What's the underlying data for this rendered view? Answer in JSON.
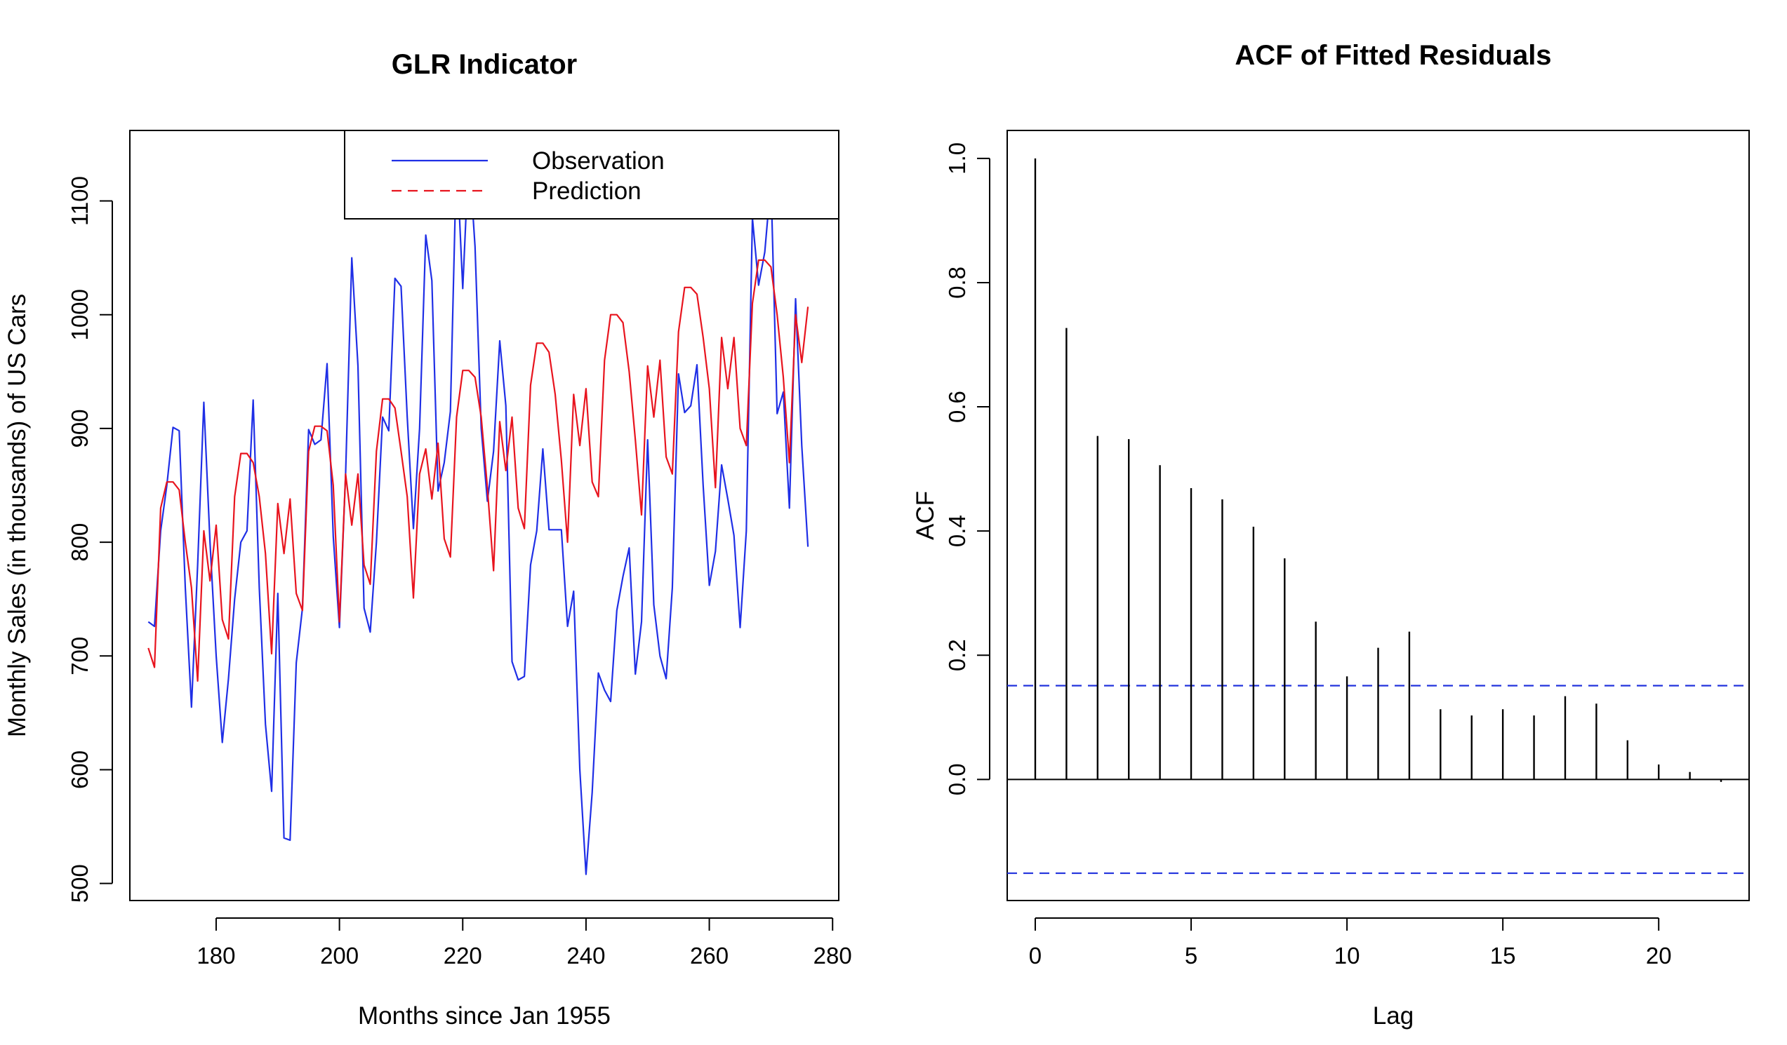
{
  "chart_data": [
    {
      "type": "line",
      "title": "GLR Indicator",
      "xlabel": "Months since Jan 1955",
      "ylabel": "Monthly Sales (in thousands) of US Cars",
      "xlim": [
        166,
        281
      ],
      "ylim": [
        485,
        1162
      ],
      "xticks": [
        180,
        200,
        220,
        240,
        260,
        280
      ],
      "yticks": [
        500,
        600,
        700,
        800,
        900,
        1000,
        1100
      ],
      "legend": "top-right",
      "x": [
        169,
        170,
        171,
        172,
        173,
        174,
        175,
        176,
        177,
        178,
        179,
        180,
        181,
        182,
        183,
        184,
        185,
        186,
        187,
        188,
        189,
        190,
        191,
        192,
        193,
        194,
        195,
        196,
        197,
        198,
        199,
        200,
        201,
        202,
        203,
        204,
        205,
        206,
        207,
        208,
        209,
        210,
        211,
        212,
        213,
        214,
        215,
        216,
        217,
        218,
        219,
        220,
        221,
        222,
        223,
        224,
        225,
        226,
        227,
        228,
        229,
        230,
        231,
        232,
        233,
        234,
        235,
        236,
        237,
        238,
        239,
        240,
        241,
        242,
        243,
        244,
        245,
        246,
        247,
        248,
        249,
        250,
        251,
        252,
        253,
        254,
        255,
        256,
        257,
        258,
        259,
        260,
        261,
        262,
        263,
        264,
        265,
        266,
        267,
        268,
        269,
        270,
        271,
        272,
        273,
        274,
        275,
        276
      ],
      "series": [
        {
          "name": "Observation",
          "color": "#1F2FE6",
          "dash": "solid",
          "values": [
            730,
            726,
            810,
            850,
            901,
            898,
            760,
            655,
            780,
            923,
            800,
            700,
            624,
            680,
            750,
            800,
            810,
            925,
            760,
            640,
            581,
            755,
            540,
            538,
            694,
            742,
            899,
            886,
            890,
            957,
            805,
            725,
            860,
            1050,
            955,
            742,
            721,
            800,
            910,
            898,
            1032,
            1025,
            910,
            812,
            900,
            1070,
            1030,
            845,
            870,
            915,
            1142,
            1023,
            1143,
            1060,
            900,
            836,
            880,
            977,
            920,
            695,
            679,
            682,
            780,
            810,
            882,
            811,
            811,
            811,
            726,
            757,
            600,
            508,
            580,
            685,
            670,
            660,
            740,
            770,
            795,
            684,
            730,
            890,
            745,
            700,
            680,
            760,
            948,
            914,
            920,
            956,
            850,
            762,
            792,
            868,
            838,
            806,
            725,
            810,
            1085,
            1026,
            1055,
            1118,
            913,
            932,
            830,
            1014,
            885,
            796
          ]
        },
        {
          "name": "Prediction",
          "color": "#E8141E",
          "dash": "dashed",
          "values": [
            707,
            690,
            830,
            853,
            853,
            846,
            800,
            760,
            678,
            810,
            766,
            815,
            732,
            715,
            840,
            878,
            878,
            870,
            840,
            790,
            702,
            834,
            790,
            838,
            755,
            740,
            880,
            902,
            902,
            898,
            850,
            730,
            860,
            815,
            860,
            780,
            763,
            880,
            926,
            926,
            918,
            880,
            840,
            751,
            860,
            882,
            838,
            887,
            803,
            787,
            910,
            951,
            951,
            945,
            910,
            848,
            775,
            906,
            863,
            910,
            830,
            812,
            938,
            975,
            975,
            967,
            930,
            872,
            800,
            930,
            885,
            935,
            853,
            840,
            960,
            1000,
            1000,
            993,
            950,
            890,
            824,
            955,
            910,
            960,
            875,
            860,
            985,
            1024,
            1024,
            1018,
            980,
            935,
            848,
            980,
            935,
            980,
            900,
            885,
            1010,
            1048,
            1048,
            1042,
            1000,
            945,
            870,
            1000,
            958,
            1007
          ]
        }
      ]
    },
    {
      "type": "bar",
      "title": "ACF of Fitted Residuals",
      "xlabel": "Lag",
      "ylabel": "ACF",
      "xlim": [
        -0.9,
        22.9
      ],
      "ylim": [
        -0.195,
        1.045
      ],
      "xticks": [
        0,
        5,
        10,
        15,
        20
      ],
      "yticks": [
        0.0,
        0.2,
        0.4,
        0.6,
        0.8,
        1.0
      ],
      "ci": 0.151,
      "ci_color": "#2233DD",
      "categories": [
        0,
        1,
        2,
        3,
        4,
        5,
        6,
        7,
        8,
        9,
        10,
        11,
        12,
        13,
        14,
        15,
        16,
        17,
        18,
        19,
        20,
        21,
        22
      ],
      "values": [
        1.0,
        0.727,
        0.553,
        0.548,
        0.506,
        0.469,
        0.451,
        0.407,
        0.356,
        0.254,
        0.166,
        0.212,
        0.238,
        0.113,
        0.103,
        0.113,
        0.103,
        0.134,
        0.122,
        0.063,
        0.024,
        0.012,
        -0.004
      ]
    }
  ]
}
